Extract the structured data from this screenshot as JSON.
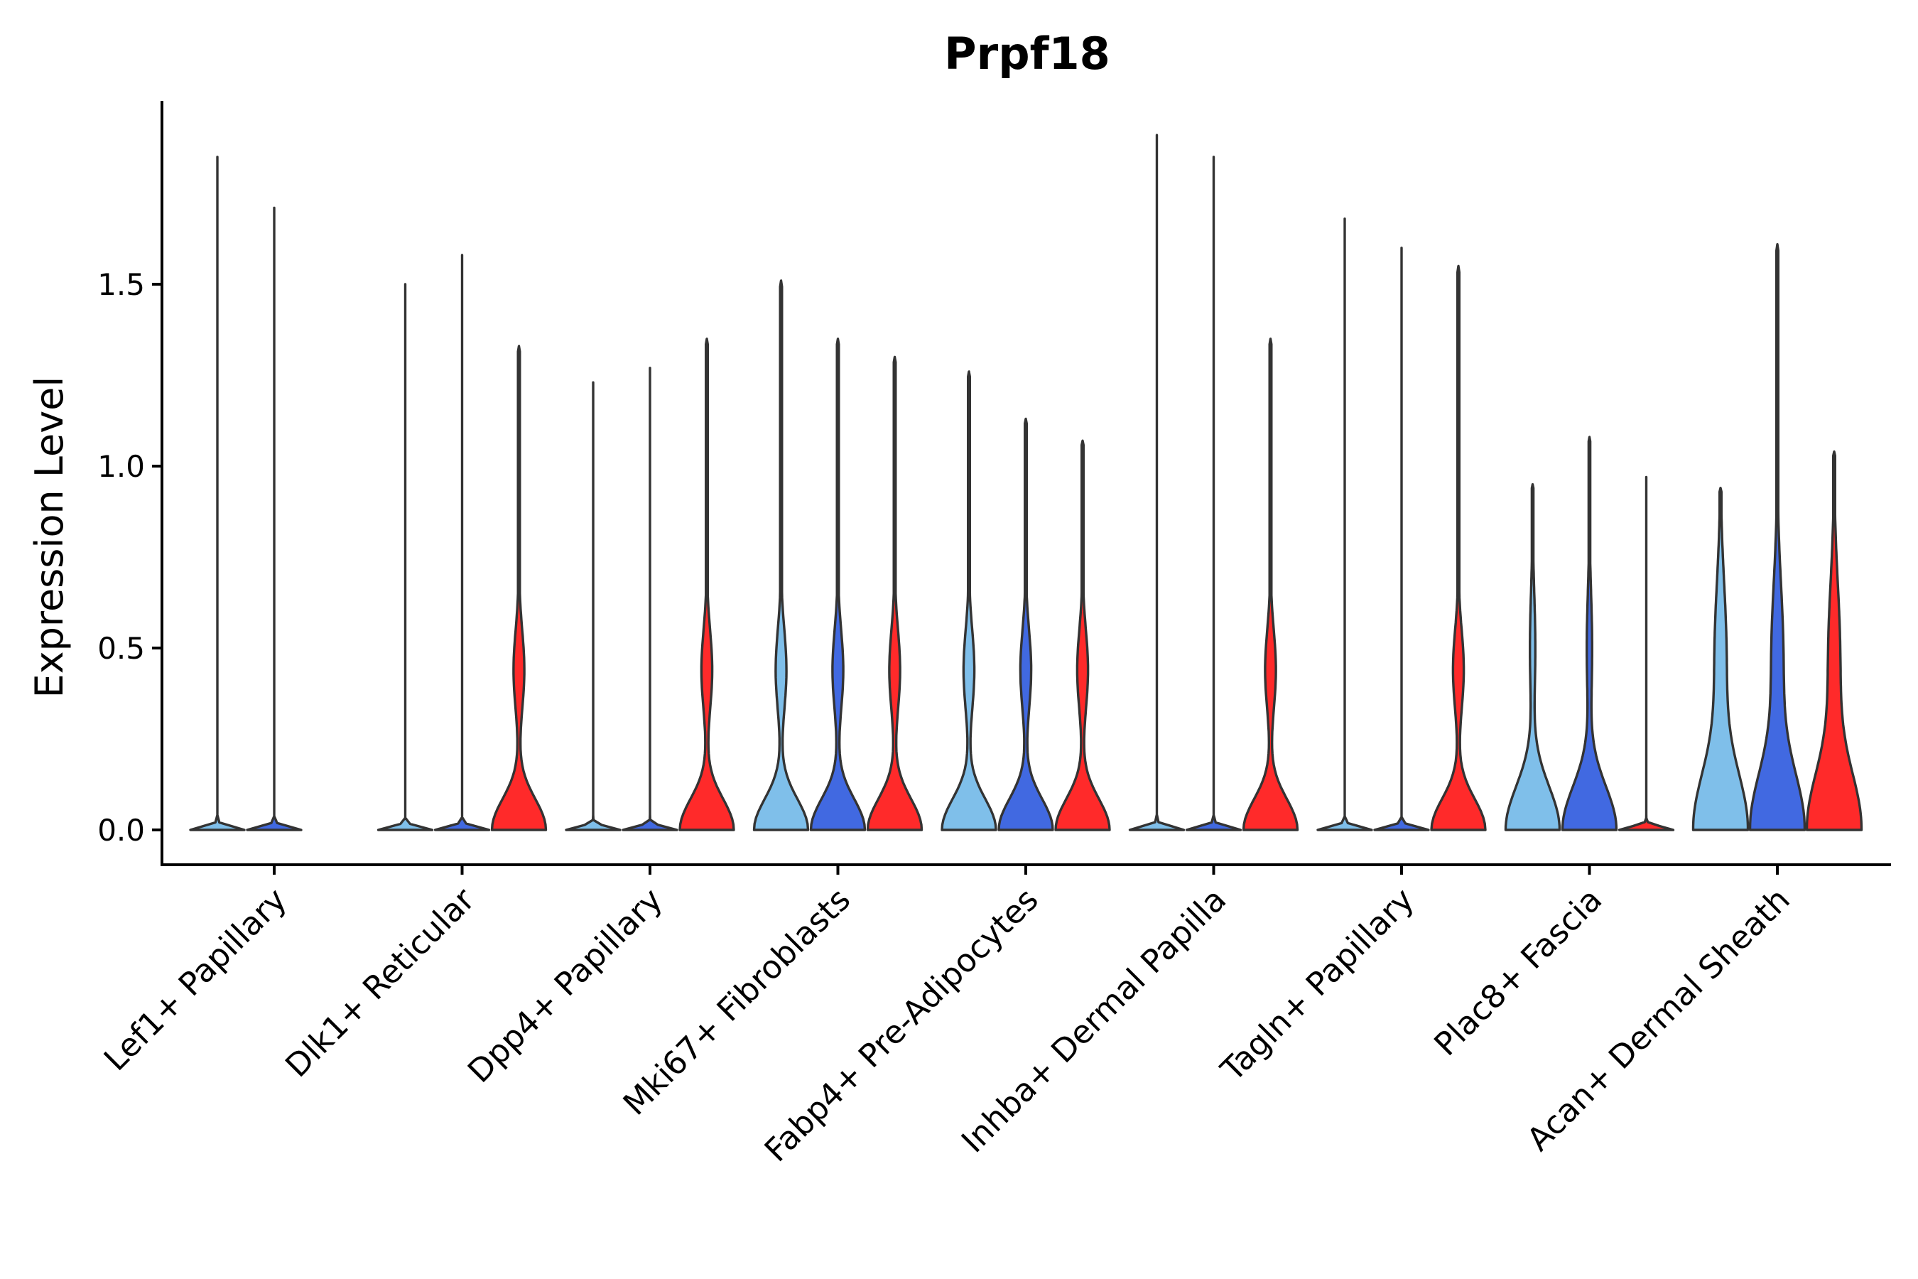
{
  "chart_data": {
    "type": "violin",
    "title": "Prpf18",
    "xlabel": "",
    "ylabel": "Expression Level",
    "ylim": [
      -0.1,
      1.98
    ],
    "yticks": [
      0.0,
      0.5,
      1.0,
      1.5
    ],
    "ytick_labels": [
      "0.0",
      "0.5",
      "1.0",
      "1.5"
    ],
    "grid": false,
    "legend": "none",
    "group_colors": [
      "#7fbfea",
      "#4169e1",
      "#ff2a2a"
    ],
    "categories": [
      "Lef1+ Papillary",
      "Dlk1+ Reticular",
      "Dpp4+ Papillary",
      "Mki67+ Fibroblasts",
      "Fabp4+ Pre-Adipocytes",
      "Inhba+ Dermal Papilla",
      "Tagln+ Papillary",
      "Plac8+ Fascia",
      "Acan+ Dermal Sheath"
    ],
    "violins": [
      {
        "category": "Lef1+ Papillary",
        "group": 1,
        "max": 1.85,
        "shape": "spike"
      },
      {
        "category": "Lef1+ Papillary",
        "group": 2,
        "max": 1.71,
        "shape": "spike"
      },
      {
        "category": "Dlk1+ Reticular",
        "group": 1,
        "max": 1.5,
        "shape": "spike"
      },
      {
        "category": "Dlk1+ Reticular",
        "group": 2,
        "max": 1.58,
        "shape": "spike"
      },
      {
        "category": "Dlk1+ Reticular",
        "group": 3,
        "max": 1.33,
        "shape": "bimodal"
      },
      {
        "category": "Dpp4+ Papillary",
        "group": 1,
        "max": 1.23,
        "shape": "spike"
      },
      {
        "category": "Dpp4+ Papillary",
        "group": 2,
        "max": 1.27,
        "shape": "spike"
      },
      {
        "category": "Dpp4+ Papillary",
        "group": 3,
        "max": 1.35,
        "shape": "bimodal"
      },
      {
        "category": "Mki67+ Fibroblasts",
        "group": 1,
        "max": 1.51,
        "shape": "bimodal"
      },
      {
        "category": "Mki67+ Fibroblasts",
        "group": 2,
        "max": 1.35,
        "shape": "bimodal"
      },
      {
        "category": "Mki67+ Fibroblasts",
        "group": 3,
        "max": 1.3,
        "shape": "bimodal"
      },
      {
        "category": "Fabp4+ Pre-Adipocytes",
        "group": 1,
        "max": 1.26,
        "shape": "bimodal"
      },
      {
        "category": "Fabp4+ Pre-Adipocytes",
        "group": 2,
        "max": 1.13,
        "shape": "bimodal"
      },
      {
        "category": "Fabp4+ Pre-Adipocytes",
        "group": 3,
        "max": 1.07,
        "shape": "bimodal"
      },
      {
        "category": "Inhba+ Dermal Papilla",
        "group": 1,
        "max": 1.91,
        "shape": "spike"
      },
      {
        "category": "Inhba+ Dermal Papilla",
        "group": 2,
        "max": 1.85,
        "shape": "spike"
      },
      {
        "category": "Inhba+ Dermal Papilla",
        "group": 3,
        "max": 1.35,
        "shape": "bimodal"
      },
      {
        "category": "Tagln+ Papillary",
        "group": 1,
        "max": 1.68,
        "shape": "spike"
      },
      {
        "category": "Tagln+ Papillary",
        "group": 2,
        "max": 1.6,
        "shape": "spike"
      },
      {
        "category": "Tagln+ Papillary",
        "group": 3,
        "max": 1.55,
        "shape": "bimodal"
      },
      {
        "category": "Plac8+ Fascia",
        "group": 1,
        "max": 0.95,
        "shape": "wide-bimodal"
      },
      {
        "category": "Plac8+ Fascia",
        "group": 2,
        "max": 1.08,
        "shape": "wide-bimodal"
      },
      {
        "category": "Plac8+ Fascia",
        "group": 3,
        "max": 0.97,
        "shape": "spike"
      },
      {
        "category": "Acan+ Dermal Sheath",
        "group": 1,
        "max": 0.94,
        "shape": "broad"
      },
      {
        "category": "Acan+ Dermal Sheath",
        "group": 2,
        "max": 1.61,
        "shape": "broad"
      },
      {
        "category": "Acan+ Dermal Sheath",
        "group": 3,
        "max": 1.04,
        "shape": "broad"
      }
    ]
  }
}
